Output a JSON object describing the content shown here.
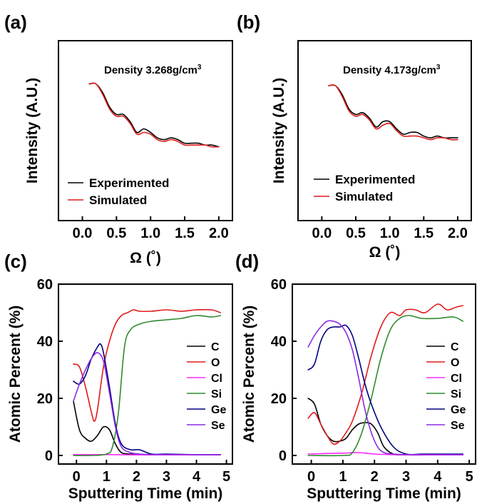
{
  "panels": [
    {
      "label": "(a)",
      "annotation": "Density 3.268g/cm",
      "annotation_sup": "3"
    },
    {
      "label": "(b)",
      "annotation": "Density 4.173g/cm",
      "annotation_sup": "3"
    },
    {
      "label": "(c)"
    },
    {
      "label": "(d)"
    }
  ],
  "colors": {
    "C": "#000000",
    "O": "#e01b1b",
    "Cl": "#ff2bff",
    "Si": "#2e8b2e",
    "Ge": "#00007f",
    "Se": "#8a2be2",
    "experimented": "#000000",
    "simulated": "#e01b1b"
  },
  "chart_data": [
    {
      "type": "line",
      "panel": "(a)",
      "xlabel": "Ω (˚)",
      "ylabel": "Intensity (A.U.)",
      "xlim": [
        -0.35,
        2.2
      ],
      "xticks": [
        "0.0",
        "0.5",
        "1.0",
        "1.5",
        "2.0"
      ],
      "ylim": [
        0,
        1
      ],
      "yticks": [],
      "grid": false,
      "legend": "bottom-left",
      "series": [
        {
          "name": "Experimented",
          "x": [
            0.1,
            0.2,
            0.3,
            0.4,
            0.5,
            0.6,
            0.7,
            0.8,
            0.9,
            1.0,
            1.1,
            1.2,
            1.3,
            1.4,
            1.5,
            1.6,
            1.7,
            1.8,
            1.9,
            2.0
          ],
          "y": [
            0.76,
            0.76,
            0.71,
            0.63,
            0.59,
            0.59,
            0.55,
            0.49,
            0.51,
            0.49,
            0.46,
            0.45,
            0.46,
            0.45,
            0.43,
            0.43,
            0.43,
            0.42,
            0.42,
            0.41
          ]
        },
        {
          "name": "Simulated",
          "x": [
            0.1,
            0.2,
            0.3,
            0.4,
            0.5,
            0.6,
            0.7,
            0.8,
            0.9,
            1.0,
            1.1,
            1.2,
            1.3,
            1.4,
            1.5,
            1.6,
            1.7,
            1.8,
            1.9,
            2.0
          ],
          "y": [
            0.76,
            0.76,
            0.7,
            0.62,
            0.58,
            0.58,
            0.54,
            0.48,
            0.49,
            0.48,
            0.45,
            0.44,
            0.45,
            0.44,
            0.42,
            0.42,
            0.42,
            0.42,
            0.41,
            0.41
          ]
        }
      ]
    },
    {
      "type": "line",
      "panel": "(b)",
      "xlabel": "Ω (˚)",
      "ylabel": "Intensity (A.U.)",
      "xlim": [
        -0.35,
        2.2
      ],
      "xticks": [
        "0.0",
        "0.5",
        "1.0",
        "1.5",
        "2.0"
      ],
      "ylim": [
        0,
        1
      ],
      "yticks": [],
      "grid": false,
      "legend": "bottom-left",
      "series": [
        {
          "name": "Experimented",
          "x": [
            0.1,
            0.2,
            0.3,
            0.4,
            0.5,
            0.6,
            0.7,
            0.8,
            0.9,
            1.0,
            1.1,
            1.2,
            1.3,
            1.4,
            1.5,
            1.6,
            1.7,
            1.8,
            1.9,
            2.0
          ],
          "y": [
            0.75,
            0.75,
            0.7,
            0.62,
            0.59,
            0.6,
            0.57,
            0.52,
            0.55,
            0.55,
            0.51,
            0.48,
            0.49,
            0.49,
            0.47,
            0.46,
            0.47,
            0.46,
            0.46,
            0.46
          ]
        },
        {
          "name": "Simulated",
          "x": [
            0.1,
            0.2,
            0.3,
            0.4,
            0.5,
            0.6,
            0.7,
            0.8,
            0.9,
            1.0,
            1.1,
            1.2,
            1.3,
            1.4,
            1.5,
            1.6,
            1.7,
            1.8,
            1.9,
            2.0
          ],
          "y": [
            0.75,
            0.75,
            0.69,
            0.61,
            0.58,
            0.59,
            0.56,
            0.51,
            0.53,
            0.54,
            0.5,
            0.47,
            0.47,
            0.47,
            0.46,
            0.45,
            0.46,
            0.46,
            0.45,
            0.45
          ]
        }
      ]
    },
    {
      "type": "line",
      "panel": "(c)",
      "xlabel": "Sputtering Time (min)",
      "ylabel": "Atomic Percent (%)",
      "xlim": [
        -0.6,
        5.2
      ],
      "xticks": [
        "0",
        "1",
        "2",
        "3",
        "4",
        "5"
      ],
      "ylim": [
        -3,
        60
      ],
      "yticks": [
        "0",
        "20",
        "40",
        "60"
      ],
      "grid": false,
      "legend": "right",
      "series": [
        {
          "name": "C",
          "x": [
            -0.1,
            0.1,
            0.3,
            0.5,
            0.7,
            0.9,
            1.1,
            1.3,
            1.5,
            1.8,
            2.2,
            3,
            4,
            4.8
          ],
          "y": [
            19,
            9,
            6,
            5,
            7,
            10,
            9,
            4,
            1,
            0.5,
            0.3,
            0.2,
            0.2,
            0.2
          ]
        },
        {
          "name": "O",
          "x": [
            -0.1,
            0.1,
            0.3,
            0.5,
            0.6,
            0.7,
            0.9,
            1.1,
            1.3,
            1.5,
            1.7,
            1.9,
            2.1,
            2.5,
            3,
            3.5,
            4,
            4.5,
            4.8
          ],
          "y": [
            32,
            31,
            24,
            15,
            12,
            16,
            31,
            40,
            46,
            49,
            50,
            51,
            50.5,
            50.5,
            51,
            50.5,
            51,
            51,
            50
          ]
        },
        {
          "name": "Cl",
          "x": [
            -0.1,
            1,
            2,
            3,
            4,
            4.8
          ],
          "y": [
            0.3,
            0.3,
            0.2,
            0.2,
            0.2,
            0.2
          ]
        },
        {
          "name": "Si",
          "x": [
            -0.1,
            0.5,
            1.0,
            1.2,
            1.4,
            1.6,
            1.8,
            2.1,
            2.5,
            3,
            3.5,
            4,
            4.5,
            4.8
          ],
          "y": [
            0,
            0,
            0.5,
            3,
            15,
            38,
            44,
            46,
            47,
            47.5,
            48,
            49,
            48.5,
            49
          ]
        },
        {
          "name": "Ge",
          "x": [
            -0.1,
            0.1,
            0.3,
            0.5,
            0.7,
            0.8,
            0.9,
            1.1,
            1.3,
            1.5,
            1.8,
            2.1,
            2.5,
            3,
            4,
            4.8
          ],
          "y": [
            26,
            25,
            28,
            34,
            38,
            39,
            36,
            24,
            11,
            4,
            2,
            2,
            0.5,
            0.5,
            0.3,
            0.3
          ]
        },
        {
          "name": "Se",
          "x": [
            -0.1,
            0.1,
            0.3,
            0.5,
            0.7,
            0.9,
            1.1,
            1.3,
            1.5,
            1.8,
            2.1,
            2.5,
            3,
            4,
            4.8
          ],
          "y": [
            19,
            25,
            30,
            34,
            36,
            33,
            22,
            10,
            3,
            1,
            0.5,
            0.3,
            0.3,
            0.3,
            0.3
          ]
        }
      ]
    },
    {
      "type": "line",
      "panel": "(d)",
      "xlabel": "Sputtering Time (min)",
      "ylabel": "Atomic Percent (%)",
      "xlim": [
        -0.6,
        5.2
      ],
      "xticks": [
        "0",
        "1",
        "2",
        "3",
        "4",
        "5"
      ],
      "ylim": [
        -3,
        60
      ],
      "yticks": [
        "0",
        "20",
        "40",
        "60"
      ],
      "grid": false,
      "legend": "right",
      "series": [
        {
          "name": "C",
          "x": [
            -0.1,
            0.1,
            0.3,
            0.5,
            0.7,
            0.9,
            1.1,
            1.3,
            1.5,
            1.7,
            1.9,
            2.1,
            2.3,
            2.6,
            3,
            4,
            4.8
          ],
          "y": [
            20,
            18,
            11,
            7,
            5,
            5,
            6,
            9,
            11,
            11.5,
            11,
            8,
            3,
            0.5,
            0.2,
            0.2,
            0.2
          ]
        },
        {
          "name": "O",
          "x": [
            -0.1,
            0.1,
            0.3,
            0.5,
            0.7,
            0.9,
            1.1,
            1.3,
            1.6,
            1.9,
            2.2,
            2.5,
            2.8,
            3,
            3.3,
            3.6,
            4,
            4.3,
            4.6,
            4.8
          ],
          "y": [
            13,
            15,
            11,
            7,
            4,
            5,
            8,
            12,
            22,
            35,
            45,
            50,
            49,
            51,
            51,
            50,
            53,
            51,
            52,
            52.5
          ]
        },
        {
          "name": "Cl",
          "x": [
            -0.1,
            0.5,
            1,
            1.5,
            2,
            2.5,
            3,
            4,
            4.8
          ],
          "y": [
            0.5,
            0.7,
            0.8,
            1,
            0.5,
            0.3,
            0.2,
            0.2,
            0.2
          ]
        },
        {
          "name": "Si",
          "x": [
            -0.1,
            1,
            1.3,
            1.6,
            1.9,
            2.2,
            2.5,
            2.8,
            3.1,
            3.5,
            4,
            4.5,
            4.8
          ],
          "y": [
            0,
            0,
            1,
            8,
            20,
            34,
            44,
            48,
            49,
            48,
            48,
            48.5,
            47
          ]
        },
        {
          "name": "Ge",
          "x": [
            -0.1,
            0.1,
            0.3,
            0.5,
            0.7,
            0.9,
            1.1,
            1.3,
            1.5,
            1.7,
            1.9,
            2.2,
            2.6,
            3,
            3.5,
            4,
            4.8
          ],
          "y": [
            30,
            32,
            40,
            44,
            45,
            45,
            45.5,
            42,
            34,
            25,
            18,
            10,
            3,
            0.5,
            0.5,
            0.5,
            0.5
          ]
        },
        {
          "name": "Se",
          "x": [
            -0.1,
            0.1,
            0.3,
            0.5,
            0.7,
            0.9,
            1.1,
            1.3,
            1.5,
            1.7,
            1.9,
            2.1,
            2.3,
            2.6,
            3,
            4,
            4.8
          ],
          "y": [
            38,
            42,
            45,
            47,
            47,
            46,
            43,
            37,
            27,
            16,
            8,
            3,
            1,
            0.5,
            0.3,
            0.3,
            0.3
          ]
        }
      ]
    }
  ]
}
